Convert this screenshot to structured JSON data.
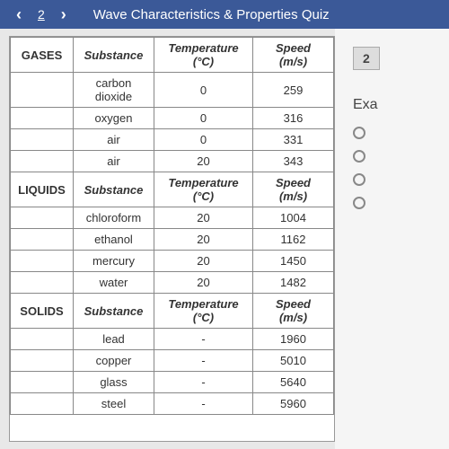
{
  "header": {
    "prev_icon": "‹",
    "page_indicator": "2",
    "next_icon": "›",
    "title": "Wave Characteristics & Properties Quiz"
  },
  "table": {
    "columns": {
      "category": "",
      "substance": "Substance",
      "temperature": "Temperature (°C)",
      "speed": "Speed (m/s)"
    },
    "sections": [
      {
        "category": "GASES",
        "rows": [
          {
            "substance": "carbon dioxide",
            "temperature": "0",
            "speed": "259"
          },
          {
            "substance": "oxygen",
            "temperature": "0",
            "speed": "316"
          },
          {
            "substance": "air",
            "temperature": "0",
            "speed": "331"
          },
          {
            "substance": "air",
            "temperature": "20",
            "speed": "343"
          }
        ]
      },
      {
        "category": "LIQUIDS",
        "rows": [
          {
            "substance": "chloroform",
            "temperature": "20",
            "speed": "1004"
          },
          {
            "substance": "ethanol",
            "temperature": "20",
            "speed": "1162"
          },
          {
            "substance": "mercury",
            "temperature": "20",
            "speed": "1450"
          },
          {
            "substance": "water",
            "temperature": "20",
            "speed": "1482"
          }
        ]
      },
      {
        "category": "SOLIDS",
        "rows": [
          {
            "substance": "lead",
            "temperature": "-",
            "speed": "1960"
          },
          {
            "substance": "copper",
            "temperature": "-",
            "speed": "5010"
          },
          {
            "substance": "glass",
            "temperature": "-",
            "speed": "5640"
          },
          {
            "substance": "steel",
            "temperature": "-",
            "speed": "5960"
          }
        ]
      }
    ]
  },
  "right": {
    "question_number": "2",
    "exam_label": "Exa",
    "options_count": 4
  },
  "colors": {
    "header_bg": "#3b5998",
    "border": "#888",
    "text": "#333"
  }
}
